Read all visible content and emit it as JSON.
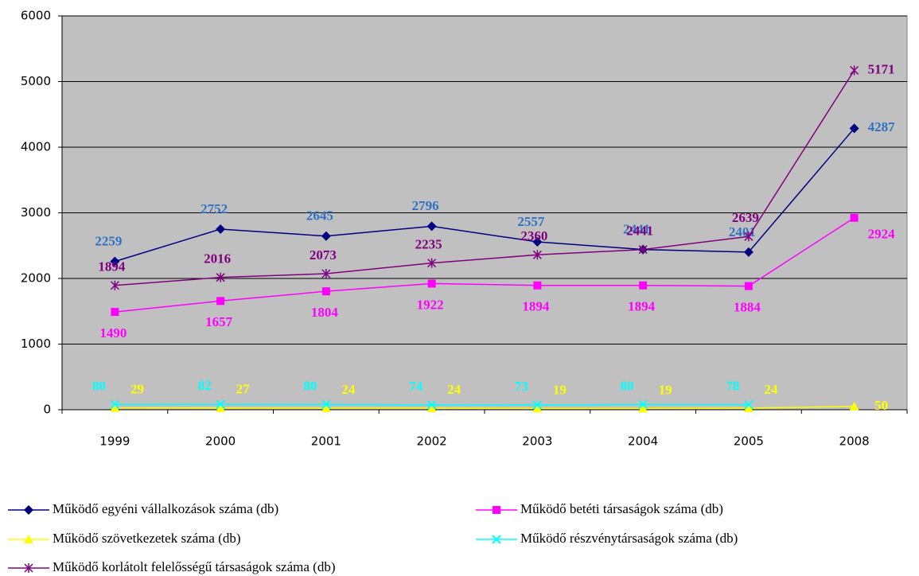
{
  "chart_data": {
    "type": "line",
    "categories": [
      "1999",
      "2000",
      "2001",
      "2002",
      "2003",
      "2004",
      "2005",
      "2008"
    ],
    "ylim": [
      0,
      6000
    ],
    "yticks": [
      0,
      1000,
      2000,
      3000,
      4000,
      5000,
      6000
    ],
    "grid": true,
    "series": [
      {
        "name": "Működő egyéni vállalkozások száma (db)",
        "color": "#000080",
        "label_color": "#2f72c4",
        "marker": "diamond",
        "values": [
          2259,
          2752,
          2645,
          2796,
          2557,
          2441,
          2401,
          4287
        ]
      },
      {
        "name": "Működő betéti társaságok száma (db)",
        "color": "#ff00ff",
        "label_color": "#ff00ff",
        "marker": "square",
        "values": [
          1490,
          1657,
          1804,
          1922,
          1894,
          1894,
          1884,
          2924
        ]
      },
      {
        "name": "Működő szövetkezetek száma (db)",
        "color": "#ffff00",
        "label_color": "#ffff00",
        "marker": "triangle",
        "values": [
          29,
          27,
          24,
          24,
          19,
          19,
          24,
          50
        ]
      },
      {
        "name": "Működő részvénytársaságok száma (db)",
        "color": "#00ffff",
        "label_color": "#00ffff",
        "marker": "x",
        "values": [
          80,
          82,
          80,
          74,
          73,
          80,
          78,
          null
        ]
      },
      {
        "name": "Működő korlátolt felelősségű társaságok száma (db)",
        "color": "#800080",
        "label_color": "#800080",
        "marker": "star",
        "values": [
          1894,
          2016,
          2073,
          2235,
          2360,
          2441,
          2639,
          5171
        ]
      }
    ]
  }
}
